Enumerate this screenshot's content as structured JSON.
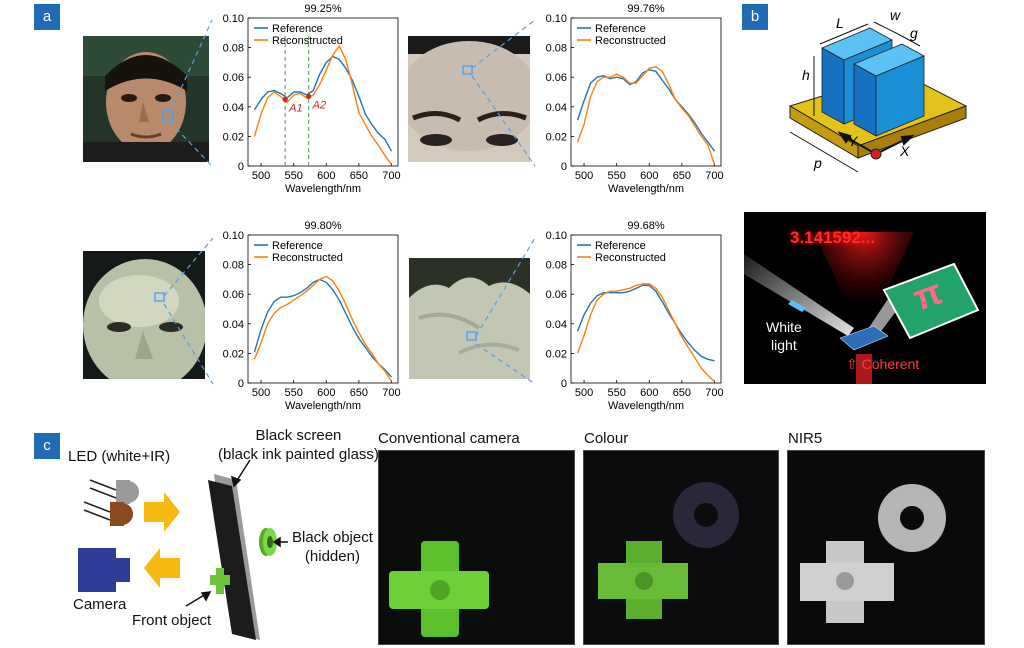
{
  "panel_labels": {
    "a": "a",
    "b": "b",
    "c": "c"
  },
  "panel_a": {
    "charts": [
      {
        "id": "a1",
        "title": "99.25%",
        "xlabel": "Wavelength/nm",
        "ylim": [
          0,
          0.1
        ],
        "xlim": [
          480,
          710
        ],
        "yticks": [
          "0.10",
          "0.08",
          "0.06",
          "0.04",
          "0.02",
          "0"
        ],
        "xticks": [
          "500",
          "550",
          "600",
          "650",
          "700"
        ],
        "legend": [
          "Reference",
          "Reconstructed"
        ],
        "annotations": [
          {
            "label": "A1",
            "x": 537,
            "y": 0.045
          },
          {
            "label": "A2",
            "x": 573,
            "y": 0.047
          }
        ],
        "guides": [
          537,
          573
        ]
      },
      {
        "id": "a2",
        "title": "99.76%",
        "xlabel": "Wavelength/nm",
        "yticks": [
          "0.10",
          "0.08",
          "0.06",
          "0.04",
          "0.02",
          "0"
        ],
        "xticks": [
          "500",
          "550",
          "600",
          "650",
          "700"
        ],
        "legend": [
          "Reference",
          "Reconstructed"
        ]
      },
      {
        "id": "a3",
        "title": "99.80%",
        "xlabel": "Wavelength/nm",
        "yticks": [
          "0.10",
          "0.08",
          "0.06",
          "0.04",
          "0.02",
          "0"
        ],
        "xticks": [
          "500",
          "550",
          "600",
          "650",
          "700"
        ],
        "legend": [
          "Reference",
          "Reconstructed"
        ]
      },
      {
        "id": "a4",
        "title": "99.68%",
        "xlabel": "Wavelength/nm",
        "yticks": [
          "0.10",
          "0.08",
          "0.06",
          "0.04",
          "0.02",
          "0"
        ],
        "xticks": [
          "500",
          "550",
          "600",
          "650",
          "700"
        ],
        "legend": [
          "Reference",
          "Reconstructed"
        ]
      }
    ]
  },
  "chart_data": [
    {
      "type": "line",
      "title": "99.25%",
      "xlabel": "Wavelength/nm",
      "ylabel": "",
      "xlim": [
        480,
        710
      ],
      "ylim": [
        0,
        0.1
      ],
      "series": [
        {
          "name": "Reference",
          "color": "#1f77b4",
          "x": [
            490,
            500,
            510,
            520,
            530,
            540,
            550,
            560,
            570,
            580,
            590,
            600,
            610,
            620,
            630,
            640,
            650,
            660,
            670,
            680,
            690,
            700
          ],
          "y": [
            0.038,
            0.045,
            0.05,
            0.051,
            0.049,
            0.046,
            0.05,
            0.05,
            0.048,
            0.051,
            0.062,
            0.07,
            0.074,
            0.072,
            0.066,
            0.058,
            0.047,
            0.035,
            0.028,
            0.022,
            0.018,
            0.01
          ]
        },
        {
          "name": "Reconstructed",
          "color": "#ff7f0e",
          "x": [
            490,
            500,
            510,
            520,
            530,
            540,
            550,
            560,
            570,
            580,
            590,
            600,
            610,
            620,
            630,
            640,
            650,
            660,
            670,
            680,
            690,
            700
          ],
          "y": [
            0.02,
            0.035,
            0.046,
            0.05,
            0.047,
            0.043,
            0.048,
            0.049,
            0.046,
            0.048,
            0.055,
            0.065,
            0.075,
            0.081,
            0.072,
            0.055,
            0.036,
            0.028,
            0.02,
            0.014,
            0.007,
            0.001
          ]
        }
      ]
    },
    {
      "type": "line",
      "title": "99.76%",
      "xlabel": "Wavelength/nm",
      "xlim": [
        480,
        710
      ],
      "ylim": [
        0,
        0.1
      ],
      "series": [
        {
          "name": "Reference",
          "color": "#1f77b4",
          "x": [
            490,
            500,
            510,
            520,
            530,
            540,
            550,
            560,
            570,
            580,
            590,
            600,
            610,
            620,
            630,
            640,
            650,
            660,
            670,
            680,
            690,
            700
          ],
          "y": [
            0.031,
            0.044,
            0.056,
            0.06,
            0.061,
            0.059,
            0.06,
            0.059,
            0.055,
            0.057,
            0.063,
            0.065,
            0.064,
            0.058,
            0.052,
            0.045,
            0.04,
            0.035,
            0.029,
            0.022,
            0.016,
            0.01
          ]
        },
        {
          "name": "Reconstructed",
          "color": "#ff7f0e",
          "x": [
            490,
            500,
            510,
            520,
            530,
            540,
            550,
            560,
            570,
            580,
            590,
            600,
            610,
            620,
            630,
            640,
            650,
            660,
            670,
            680,
            690,
            700
          ],
          "y": [
            0.016,
            0.028,
            0.047,
            0.057,
            0.06,
            0.06,
            0.062,
            0.06,
            0.056,
            0.056,
            0.061,
            0.066,
            0.067,
            0.064,
            0.055,
            0.045,
            0.039,
            0.034,
            0.027,
            0.02,
            0.014,
            0.001
          ]
        }
      ]
    },
    {
      "type": "line",
      "title": "99.80%",
      "xlabel": "Wavelength/nm",
      "xlim": [
        480,
        710
      ],
      "ylim": [
        0,
        0.1
      ],
      "series": [
        {
          "name": "Reference",
          "color": "#1f77b4",
          "x": [
            490,
            500,
            510,
            520,
            530,
            540,
            550,
            560,
            570,
            580,
            590,
            600,
            610,
            620,
            630,
            640,
            650,
            660,
            670,
            680,
            690,
            700
          ],
          "y": [
            0.021,
            0.036,
            0.048,
            0.055,
            0.058,
            0.058,
            0.059,
            0.061,
            0.064,
            0.068,
            0.07,
            0.068,
            0.063,
            0.056,
            0.047,
            0.038,
            0.03,
            0.024,
            0.018,
            0.013,
            0.009,
            0.004
          ]
        },
        {
          "name": "Reconstructed",
          "color": "#ff7f0e",
          "x": [
            490,
            500,
            510,
            520,
            530,
            540,
            550,
            560,
            570,
            580,
            590,
            600,
            610,
            620,
            630,
            640,
            650,
            660,
            670,
            680,
            690,
            700
          ],
          "y": [
            0.016,
            0.027,
            0.04,
            0.047,
            0.051,
            0.053,
            0.056,
            0.059,
            0.062,
            0.066,
            0.07,
            0.072,
            0.069,
            0.062,
            0.053,
            0.043,
            0.034,
            0.026,
            0.02,
            0.013,
            0.008,
            0.001
          ]
        }
      ]
    },
    {
      "type": "line",
      "title": "99.68%",
      "xlabel": "Wavelength/nm",
      "xlim": [
        480,
        710
      ],
      "ylim": [
        0,
        0.1
      ],
      "series": [
        {
          "name": "Reference",
          "color": "#1f77b4",
          "x": [
            490,
            500,
            510,
            520,
            530,
            540,
            550,
            560,
            570,
            580,
            590,
            600,
            610,
            620,
            630,
            640,
            650,
            660,
            670,
            680,
            690,
            700
          ],
          "y": [
            0.035,
            0.046,
            0.054,
            0.059,
            0.061,
            0.061,
            0.061,
            0.061,
            0.062,
            0.064,
            0.066,
            0.066,
            0.062,
            0.055,
            0.047,
            0.04,
            0.033,
            0.027,
            0.022,
            0.018,
            0.016,
            0.015
          ]
        },
        {
          "name": "Reconstructed",
          "color": "#ff7f0e",
          "x": [
            490,
            500,
            510,
            520,
            530,
            540,
            550,
            560,
            570,
            580,
            590,
            600,
            610,
            620,
            630,
            640,
            650,
            660,
            670,
            680,
            690,
            700
          ],
          "y": [
            0.02,
            0.032,
            0.046,
            0.056,
            0.06,
            0.062,
            0.062,
            0.063,
            0.064,
            0.066,
            0.067,
            0.067,
            0.064,
            0.058,
            0.049,
            0.04,
            0.031,
            0.024,
            0.017,
            0.01,
            0.005,
            0.001
          ]
        }
      ]
    }
  ],
  "panel_b": {
    "dims": {
      "L": "L",
      "w": "w",
      "g": "g",
      "h": "h",
      "p": "p",
      "Y": "Y",
      "X": "X"
    },
    "pi_value": "3.141592...",
    "pi_symbol": "π",
    "white_light": [
      "White",
      "light"
    ],
    "coherent": "Coherent",
    "colors": {
      "pillar": "#1b8fd6",
      "base": "#d6b412",
      "beam": "#d62020"
    }
  },
  "panel_c": {
    "led": "LED (white+IR)",
    "camera": "Camera",
    "front_object": "Front object",
    "screen": [
      "Black screen",
      "(black ink painted glass)"
    ],
    "black_object": [
      "Black object",
      "(hidden)"
    ],
    "images": [
      {
        "title": "Conventional camera"
      },
      {
        "title": "Colour"
      },
      {
        "title": "NIR5"
      }
    ],
    "colors": {
      "camera": "#2e3c9a",
      "arrow": "#f5b90f",
      "object": "#6bc43a"
    }
  }
}
